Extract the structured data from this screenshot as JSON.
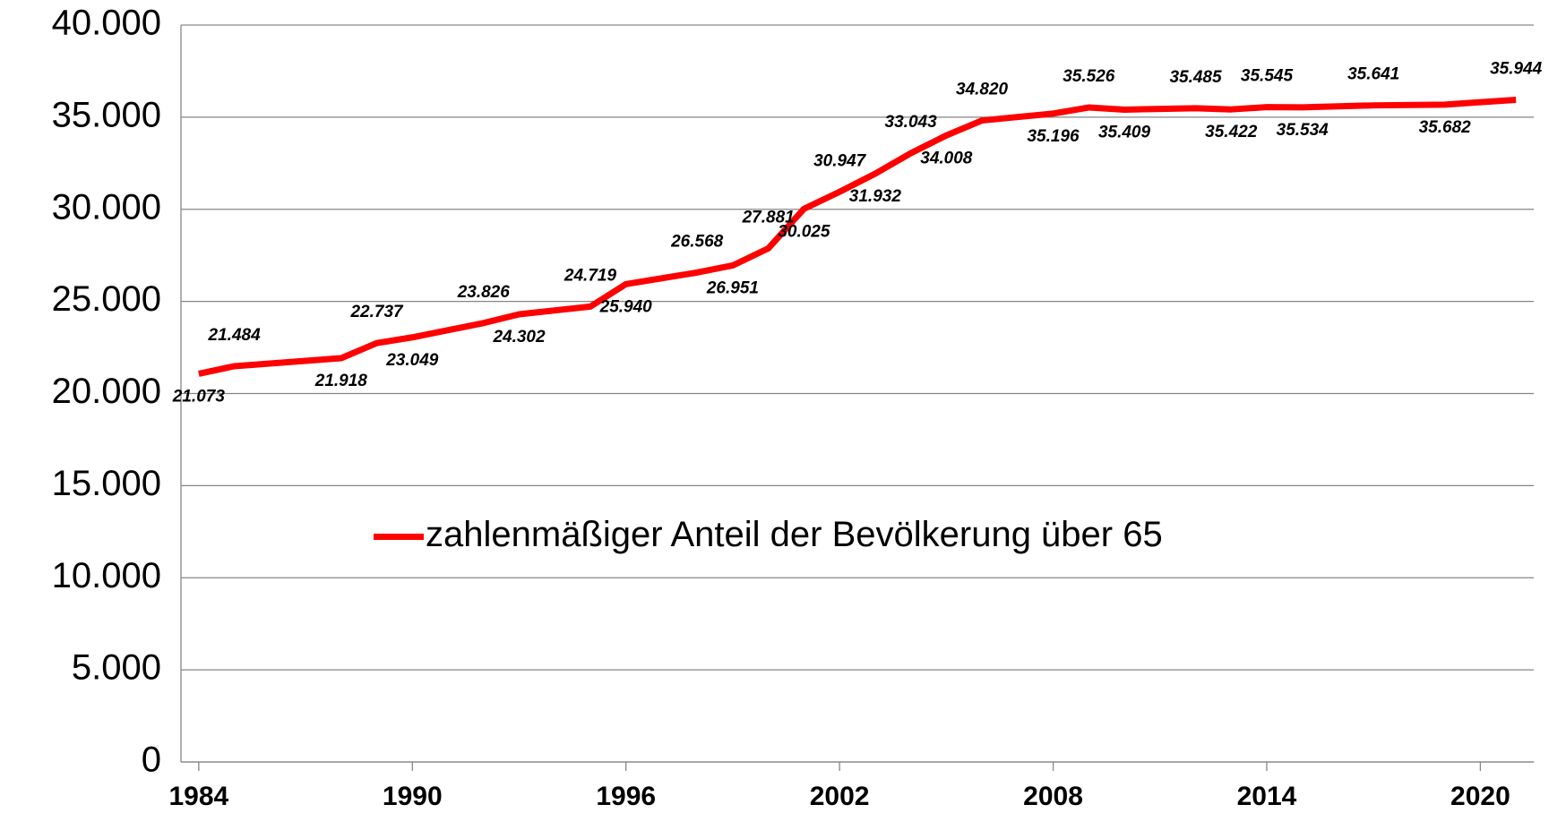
{
  "chart_data": {
    "type": "line",
    "x": [
      1984,
      1985,
      1988,
      1989,
      1990,
      1992,
      1993,
      1995,
      1996,
      1998,
      1999,
      2000,
      2001,
      2002,
      2003,
      2004,
      2005,
      2006,
      2008,
      2009,
      2010,
      2012,
      2013,
      2014,
      2015,
      2017,
      2019,
      2021
    ],
    "series": [
      {
        "name": "zahlenmäßiger Anteil der Bevölkerung über 65",
        "color": "#ff0000",
        "values": [
          21073,
          21484,
          21918,
          22737,
          23049,
          23826,
          24302,
          24719,
          25940,
          26568,
          26951,
          27881,
          30025,
          30947,
          31932,
          33043,
          34008,
          34820,
          35196,
          35526,
          35409,
          35485,
          35422,
          35545,
          35534,
          35641,
          35682,
          35944
        ],
        "value_labels": [
          "21.073",
          "21.484",
          "21.918",
          "22.737",
          "23.049",
          "23.826",
          "24.302",
          "24.719",
          "25.940",
          "26.568",
          "26.951",
          "27.881",
          "30.025",
          "30.947",
          "31.932",
          "33.043",
          "34.008",
          "34.820",
          "35.196",
          "35.526",
          "35.409",
          "35.485",
          "35.422",
          "35.545",
          "35.534",
          "35.641",
          "35.682",
          "35.944"
        ]
      }
    ],
    "xlim": [
      1983.5,
      2021.5
    ],
    "xticks": [
      1984,
      1990,
      1996,
      2002,
      2008,
      2014,
      2020
    ],
    "ylim": [
      0,
      40000
    ],
    "yticks": [
      0,
      {
        "value": 5000,
        "label": "5.000"
      },
      {
        "value": 10000,
        "label": "10.000"
      },
      {
        "value": 15000,
        "label": "15.000"
      },
      {
        "value": 20000,
        "label": "20.000"
      },
      {
        "value": 25000,
        "label": "25.000"
      },
      {
        "value": 30000,
        "label": "30.000"
      },
      {
        "value": 35000,
        "label": "35.000"
      },
      {
        "value": 40000,
        "label": "40.000"
      }
    ],
    "grid": true,
    "legend": "center"
  }
}
